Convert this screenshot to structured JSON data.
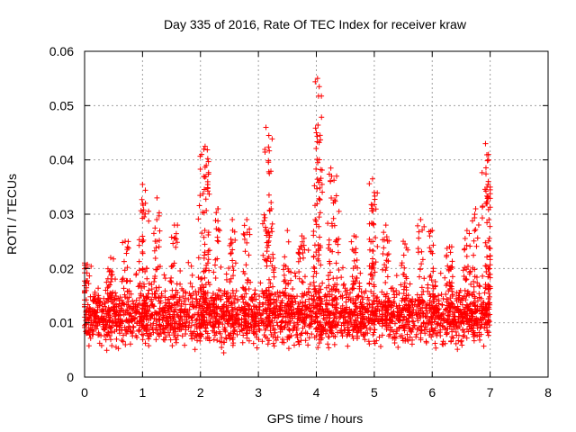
{
  "chart_data": {
    "type": "scatter",
    "title": "Day 335 of 2016, Rate Of TEC Index for receiver kraw",
    "xlabel": "GPS time / hours",
    "ylabel": "ROTI / TECUs",
    "xlim": [
      0,
      8
    ],
    "ylim": [
      0,
      0.06
    ],
    "xticks": [
      "0",
      "1",
      "2",
      "3",
      "4",
      "5",
      "6",
      "7",
      "8"
    ],
    "yticks": [
      "0",
      "0.01",
      "0.02",
      "0.03",
      "0.04",
      "0.05",
      "0.06"
    ],
    "xtick_values": [
      0,
      1,
      2,
      3,
      4,
      5,
      6,
      7,
      8
    ],
    "ytick_values": [
      0,
      0.01,
      0.02,
      0.03,
      0.04,
      0.05,
      0.06
    ],
    "grid": true,
    "marker": "+",
    "color": "#ff0000",
    "series": [
      {
        "name": "ROTI",
        "x_range": [
          0.0,
          7.0
        ],
        "baseline_band": [
          0.004,
          0.018
        ],
        "peaks": [
          {
            "x": 0.0,
            "y": 0.021
          },
          {
            "x": 0.45,
            "y": 0.022
          },
          {
            "x": 0.7,
            "y": 0.025
          },
          {
            "x": 1.0,
            "y": 0.0355
          },
          {
            "x": 1.05,
            "y": 0.032
          },
          {
            "x": 1.25,
            "y": 0.033
          },
          {
            "x": 1.55,
            "y": 0.028
          },
          {
            "x": 2.02,
            "y": 0.041
          },
          {
            "x": 2.08,
            "y": 0.0425
          },
          {
            "x": 2.1,
            "y": 0.039
          },
          {
            "x": 2.3,
            "y": 0.031
          },
          {
            "x": 2.55,
            "y": 0.029
          },
          {
            "x": 2.8,
            "y": 0.029
          },
          {
            "x": 3.13,
            "y": 0.046
          },
          {
            "x": 3.18,
            "y": 0.0445
          },
          {
            "x": 3.22,
            "y": 0.031
          },
          {
            "x": 3.5,
            "y": 0.027
          },
          {
            "x": 3.75,
            "y": 0.026
          },
          {
            "x": 4.02,
            "y": 0.055
          },
          {
            "x": 4.05,
            "y": 0.0535
          },
          {
            "x": 4.0,
            "y": 0.045
          },
          {
            "x": 4.25,
            "y": 0.0385
          },
          {
            "x": 4.35,
            "y": 0.037
          },
          {
            "x": 4.65,
            "y": 0.026
          },
          {
            "x": 4.97,
            "y": 0.0365
          },
          {
            "x": 5.0,
            "y": 0.034
          },
          {
            "x": 5.2,
            "y": 0.028
          },
          {
            "x": 5.5,
            "y": 0.025
          },
          {
            "x": 5.8,
            "y": 0.029
          },
          {
            "x": 6.0,
            "y": 0.027
          },
          {
            "x": 6.3,
            "y": 0.024
          },
          {
            "x": 6.6,
            "y": 0.027
          },
          {
            "x": 6.75,
            "y": 0.031
          },
          {
            "x": 6.92,
            "y": 0.043
          },
          {
            "x": 6.97,
            "y": 0.041
          },
          {
            "x": 7.0,
            "y": 0.035
          }
        ]
      }
    ]
  }
}
